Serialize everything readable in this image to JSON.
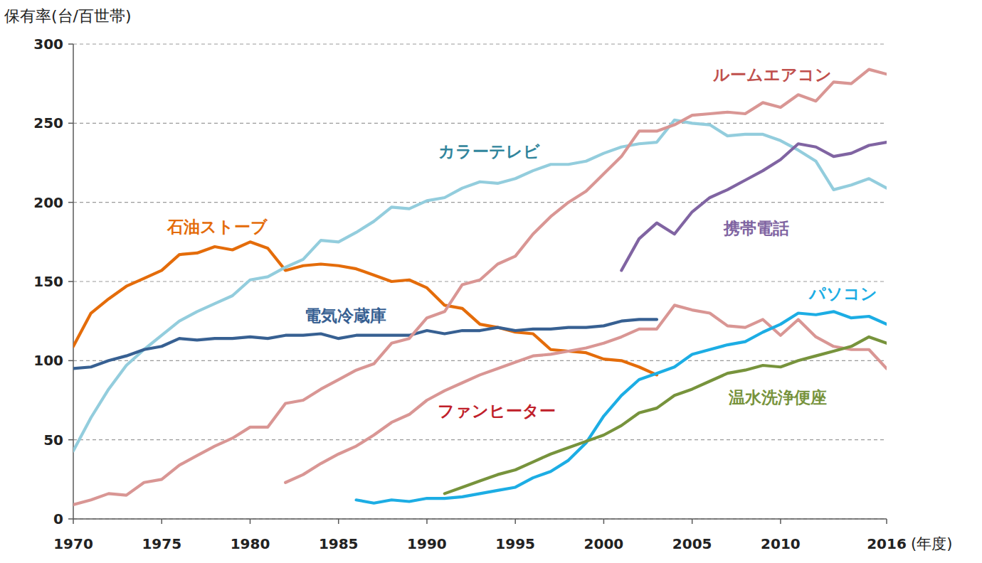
{
  "chart_data": {
    "type": "line",
    "y_label": "保有率(台/百世帯)",
    "x_label": "(年度)",
    "x": [
      1970,
      1971,
      1972,
      1973,
      1974,
      1975,
      1976,
      1977,
      1978,
      1979,
      1980,
      1981,
      1982,
      1983,
      1984,
      1985,
      1986,
      1987,
      1988,
      1989,
      1990,
      1991,
      1992,
      1993,
      1994,
      1995,
      1996,
      1997,
      1998,
      1999,
      2000,
      2001,
      2002,
      2003,
      2004,
      2005,
      2006,
      2007,
      2008,
      2009,
      2010,
      2011,
      2012,
      2013,
      2014,
      2015,
      2016
    ],
    "xlim": [
      1970,
      2016
    ],
    "xticks": [
      1970,
      1975,
      1980,
      1985,
      1990,
      1995,
      2000,
      2005,
      2010,
      2016
    ],
    "ylim": [
      0,
      300
    ],
    "yticks": [
      0,
      50,
      100,
      150,
      200,
      250,
      300
    ],
    "grid": true,
    "series": [
      {
        "name": "石油ストーブ",
        "color": "#e46c0a",
        "line_style": "solid",
        "values": [
          109,
          130,
          139,
          147,
          152,
          157,
          167,
          168,
          172,
          170,
          175,
          171,
          157,
          160,
          161,
          160,
          158,
          154,
          150,
          151,
          146,
          135,
          133,
          123,
          121,
          118,
          117,
          107,
          106,
          105,
          101,
          100,
          96,
          91,
          null,
          null,
          null,
          null,
          null,
          null,
          null,
          null,
          null,
          null,
          null,
          null,
          null
        ]
      },
      {
        "name": "カラーテレビ",
        "color": "#93cddd",
        "line_style": "solid",
        "values": [
          43,
          64,
          82,
          97,
          107,
          116,
          125,
          131,
          136,
          141,
          151,
          153,
          159,
          164,
          176,
          175,
          181,
          188,
          197,
          196,
          201,
          203,
          209,
          213,
          212,
          215,
          220,
          224,
          224,
          226,
          231,
          235,
          237,
          238,
          252,
          250,
          249,
          242,
          243,
          243,
          239,
          233,
          226,
          208,
          211,
          215,
          209
        ]
      },
      {
        "name": "電気冷蔵庫",
        "color": "#376092",
        "line_style": "solid",
        "values": [
          95,
          96,
          100,
          103,
          107,
          109,
          114,
          113,
          114,
          114,
          115,
          114,
          116,
          116,
          117,
          114,
          116,
          116,
          116,
          116,
          119,
          117,
          119,
          119,
          121,
          119,
          120,
          120,
          121,
          121,
          122,
          125,
          126,
          126,
          null,
          null,
          null,
          null,
          null,
          null,
          null,
          null,
          null,
          null,
          null,
          null,
          null
        ]
      },
      {
        "name": "ルームエアコン",
        "color": "#d99694",
        "line_style": "solid",
        "values": [
          9,
          12,
          16,
          15,
          23,
          25,
          34,
          40,
          46,
          51,
          58,
          58,
          73,
          75,
          82,
          88,
          94,
          98,
          111,
          114,
          127,
          131,
          148,
          151,
          161,
          166,
          180,
          191,
          200,
          207,
          218,
          229,
          245,
          245,
          249,
          255,
          256,
          257,
          256,
          263,
          260,
          268,
          264,
          276,
          275,
          284,
          281
        ]
      },
      {
        "name": "ファンヒーター",
        "color": "#d99694",
        "line_style": "solid",
        "values": [
          null,
          null,
          null,
          null,
          null,
          null,
          null,
          null,
          null,
          null,
          null,
          null,
          23,
          28,
          35,
          41,
          46,
          53,
          61,
          66,
          75,
          81,
          86,
          91,
          95,
          99,
          103,
          104,
          106,
          108,
          111,
          115,
          120,
          120,
          135,
          132,
          130,
          122,
          121,
          126,
          116,
          126,
          115,
          109,
          107,
          107,
          95
        ]
      },
      {
        "name": "携帯電話",
        "color": "#8064a2",
        "line_style": "solid",
        "values": [
          null,
          null,
          null,
          null,
          null,
          null,
          null,
          null,
          null,
          null,
          null,
          null,
          null,
          null,
          null,
          null,
          null,
          null,
          null,
          null,
          null,
          null,
          null,
          null,
          null,
          null,
          null,
          null,
          null,
          null,
          null,
          157,
          177,
          187,
          180,
          194,
          203,
          208,
          214,
          220,
          227,
          237,
          235,
          229,
          231,
          236,
          238
        ]
      },
      {
        "name": "パソコン",
        "color": "#1cade4",
        "line_style": "solid",
        "values": [
          null,
          null,
          null,
          null,
          null,
          null,
          null,
          null,
          null,
          null,
          null,
          null,
          null,
          null,
          null,
          null,
          12,
          10,
          12,
          11,
          13,
          13,
          14,
          16,
          18,
          20,
          26,
          30,
          37,
          48,
          65,
          78,
          88,
          92,
          96,
          104,
          107,
          110,
          112,
          118,
          123,
          130,
          129,
          131,
          127,
          128,
          123
        ]
      },
      {
        "name": "温水洗浄便座",
        "color": "#77933c",
        "line_style": "solid",
        "values": [
          null,
          null,
          null,
          null,
          null,
          null,
          null,
          null,
          null,
          null,
          null,
          null,
          null,
          null,
          null,
          null,
          null,
          null,
          null,
          null,
          null,
          16,
          20,
          24,
          28,
          31,
          36,
          41,
          45,
          49,
          53,
          59,
          67,
          70,
          78,
          82,
          87,
          92,
          94,
          97,
          96,
          100,
          103,
          106,
          109,
          115,
          111
        ]
      }
    ]
  }
}
